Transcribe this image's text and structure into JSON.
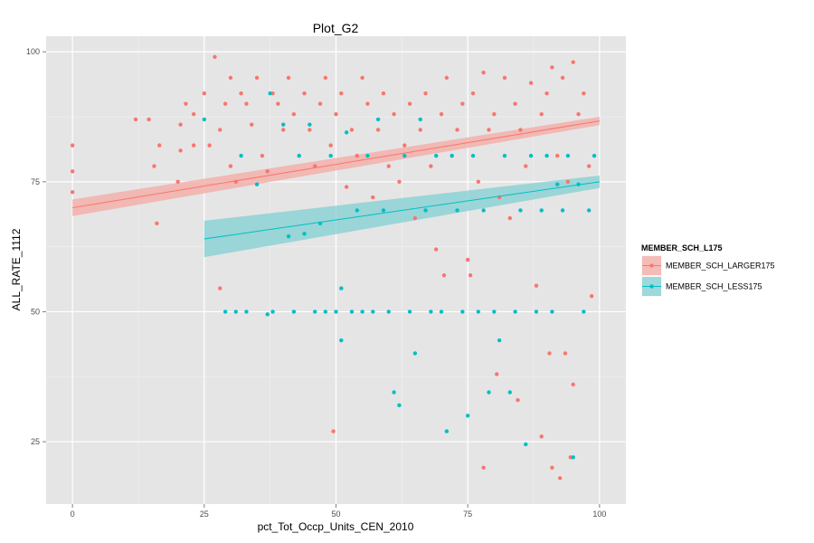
{
  "chart_data": {
    "type": "scatter",
    "title": "Plot_G2",
    "xlabel": "pct_Tot_Occp_Units_CEN_2010",
    "ylabel": "ALL_RATE_1112",
    "xlim": [
      -5,
      105
    ],
    "ylim": [
      13,
      103
    ],
    "x_ticks": [
      0,
      25,
      50,
      75,
      100
    ],
    "y_ticks": [
      25,
      50,
      75,
      100
    ],
    "x_tick_labels": [
      "0",
      "25",
      "50",
      "75",
      "100"
    ],
    "y_tick_labels": [
      "25",
      "50",
      "75",
      "100"
    ],
    "grid": true,
    "background": "#e5e5e5",
    "legend": {
      "title": "MEMBER_SCH_L175",
      "position": "right"
    },
    "series": [
      {
        "name": "MEMBER_SCH_LARGER175",
        "color": "#f8766d",
        "fill": "#f4a8a3",
        "trend": {
          "x": [
            0,
            100
          ],
          "y": [
            70,
            86.7
          ],
          "ci_halfwidth": [
            1.6,
            0.8
          ]
        },
        "points": [
          [
            0,
            82
          ],
          [
            0,
            77
          ],
          [
            0,
            73
          ],
          [
            12,
            87
          ],
          [
            14.5,
            87
          ],
          [
            15.5,
            78
          ],
          [
            16,
            67
          ],
          [
            16.5,
            82
          ],
          [
            20,
            75
          ],
          [
            20.5,
            86
          ],
          [
            20.5,
            81
          ],
          [
            21.5,
            90
          ],
          [
            23,
            88
          ],
          [
            23,
            82
          ],
          [
            25,
            92
          ],
          [
            26,
            82
          ],
          [
            27,
            99
          ],
          [
            28,
            85
          ],
          [
            28,
            54.5
          ],
          [
            29,
            90
          ],
          [
            30,
            95
          ],
          [
            30,
            78
          ],
          [
            31,
            75
          ],
          [
            32,
            92
          ],
          [
            33,
            90
          ],
          [
            34,
            86
          ],
          [
            35,
            95
          ],
          [
            36,
            80
          ],
          [
            37,
            77
          ],
          [
            38,
            92
          ],
          [
            39,
            90
          ],
          [
            40,
            85
          ],
          [
            41,
            95
          ],
          [
            42,
            88
          ],
          [
            43,
            80
          ],
          [
            44,
            92
          ],
          [
            45,
            85
          ],
          [
            46,
            78
          ],
          [
            47,
            90
          ],
          [
            48,
            95
          ],
          [
            49,
            82
          ],
          [
            49.5,
            27
          ],
          [
            50,
            88
          ],
          [
            51,
            92
          ],
          [
            52,
            74
          ],
          [
            53,
            85
          ],
          [
            54,
            80
          ],
          [
            55,
            95
          ],
          [
            56,
            90
          ],
          [
            57,
            72
          ],
          [
            58,
            85
          ],
          [
            59,
            92
          ],
          [
            60,
            78
          ],
          [
            61,
            88
          ],
          [
            62,
            75
          ],
          [
            63,
            82
          ],
          [
            64,
            90
          ],
          [
            65,
            68
          ],
          [
            66,
            85
          ],
          [
            67,
            92
          ],
          [
            68,
            78
          ],
          [
            69,
            62
          ],
          [
            70,
            88
          ],
          [
            70.5,
            57
          ],
          [
            71,
            95
          ],
          [
            72,
            80
          ],
          [
            73,
            85
          ],
          [
            74,
            90
          ],
          [
            75,
            60
          ],
          [
            75.5,
            57
          ],
          [
            76,
            92
          ],
          [
            77,
            75
          ],
          [
            78,
            96
          ],
          [
            78,
            20
          ],
          [
            79,
            85
          ],
          [
            80,
            88
          ],
          [
            80.5,
            38
          ],
          [
            81,
            72
          ],
          [
            82,
            95
          ],
          [
            83,
            68
          ],
          [
            84,
            90
          ],
          [
            84.5,
            33
          ],
          [
            85,
            85
          ],
          [
            86,
            78
          ],
          [
            87,
            94
          ],
          [
            88,
            55
          ],
          [
            89,
            88
          ],
          [
            89,
            26
          ],
          [
            90,
            92
          ],
          [
            90.5,
            42
          ],
          [
            91,
            97
          ],
          [
            91,
            20
          ],
          [
            92,
            80
          ],
          [
            92.5,
            18
          ],
          [
            93,
            95
          ],
          [
            93.5,
            42
          ],
          [
            94,
            75
          ],
          [
            94.5,
            22
          ],
          [
            95,
            98
          ],
          [
            95,
            36
          ],
          [
            96,
            88
          ],
          [
            97,
            92
          ],
          [
            98,
            78
          ],
          [
            98.5,
            53
          ]
        ]
      },
      {
        "name": "MEMBER_SCH_LESS175",
        "color": "#00bfc4",
        "fill": "#80cfd1",
        "trend": {
          "x": [
            25,
            100
          ],
          "y": [
            64,
            75
          ],
          "ci_halfwidth": [
            3.5,
            1.2
          ]
        },
        "points": [
          [
            25,
            87
          ],
          [
            29,
            50
          ],
          [
            31,
            50
          ],
          [
            32,
            80
          ],
          [
            33,
            50
          ],
          [
            35,
            74.5
          ],
          [
            37,
            49.5
          ],
          [
            37.5,
            92
          ],
          [
            38,
            50
          ],
          [
            40,
            86
          ],
          [
            41,
            64.5
          ],
          [
            42,
            50
          ],
          [
            43,
            80
          ],
          [
            44,
            65
          ],
          [
            45,
            86
          ],
          [
            46,
            50
          ],
          [
            47,
            67
          ],
          [
            48,
            50
          ],
          [
            49,
            80
          ],
          [
            50,
            50
          ],
          [
            51,
            44.5
          ],
          [
            51,
            54.5
          ],
          [
            52,
            84.5
          ],
          [
            53,
            50
          ],
          [
            54,
            69.5
          ],
          [
            55,
            50
          ],
          [
            56,
            80
          ],
          [
            57,
            50
          ],
          [
            58,
            87
          ],
          [
            59,
            69.5
          ],
          [
            60,
            50
          ],
          [
            61,
            34.5
          ],
          [
            62,
            32
          ],
          [
            63,
            80
          ],
          [
            64,
            50
          ],
          [
            65,
            42
          ],
          [
            66,
            87
          ],
          [
            67,
            69.5
          ],
          [
            68,
            50
          ],
          [
            69,
            80
          ],
          [
            70,
            50
          ],
          [
            71,
            27
          ],
          [
            72,
            80
          ],
          [
            73,
            69.5
          ],
          [
            74,
            50
          ],
          [
            75,
            30
          ],
          [
            76,
            80
          ],
          [
            77,
            50
          ],
          [
            78,
            69.5
          ],
          [
            79,
            34.5
          ],
          [
            80,
            50
          ],
          [
            81,
            44.5
          ],
          [
            82,
            80
          ],
          [
            83,
            34.5
          ],
          [
            84,
            50
          ],
          [
            85,
            69.5
          ],
          [
            86,
            24.5
          ],
          [
            87,
            80
          ],
          [
            88,
            50
          ],
          [
            89,
            69.5
          ],
          [
            90,
            80
          ],
          [
            91,
            50
          ],
          [
            92,
            74.5
          ],
          [
            93,
            69.5
          ],
          [
            94,
            80
          ],
          [
            95,
            22
          ],
          [
            96,
            74.5
          ],
          [
            97,
            50
          ],
          [
            98,
            69.5
          ],
          [
            99,
            80
          ]
        ]
      }
    ]
  }
}
